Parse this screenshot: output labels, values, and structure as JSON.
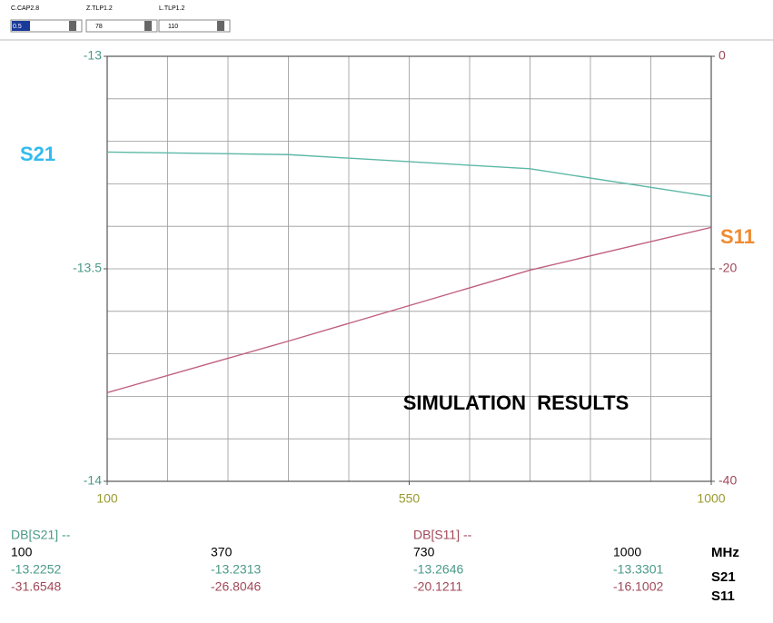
{
  "controls": [
    {
      "label": "C.CAP2.8",
      "value": "0.5"
    },
    {
      "label": "Z.TLP1.2",
      "value": "78"
    },
    {
      "label": "L.TLP1.2",
      "value": "110"
    }
  ],
  "chart_data": {
    "type": "line",
    "annotation": "SIMULATION  RESULTS",
    "x": [
      100,
      370,
      730,
      1000
    ],
    "series": [
      {
        "name": "S21",
        "color": "#5cb8a6",
        "label_color": "#33bbee",
        "values": [
          -13.2252,
          -13.2313,
          -13.2646,
          -13.3301
        ]
      },
      {
        "name": "S11",
        "color": "#c0607e",
        "label_color": "#f08a30",
        "axis": "y2",
        "values": [
          -31.6548,
          -26.8046,
          -20.1211,
          -16.1002
        ]
      }
    ],
    "xlim": [
      100,
      1000
    ],
    "xticks": [
      100,
      550,
      1000
    ],
    "ylim": [
      -14,
      -13
    ],
    "yticks": [
      -14,
      -13.5,
      -13
    ],
    "y2lim": [
      -40,
      0
    ],
    "y2ticks": [
      -40,
      -20,
      0
    ],
    "grid": true
  },
  "table": {
    "headers": [
      "DB[S21] --",
      "DB[S11] --"
    ],
    "rows": [
      [
        "100",
        "370",
        "730",
        "1000",
        "MHz"
      ],
      [
        "-13.2252",
        "-13.2313",
        "-13.2646",
        "-13.3301",
        "S21"
      ],
      [
        "-31.6548",
        "-26.8046",
        "-20.1211",
        "-16.1002",
        "S11"
      ]
    ]
  }
}
